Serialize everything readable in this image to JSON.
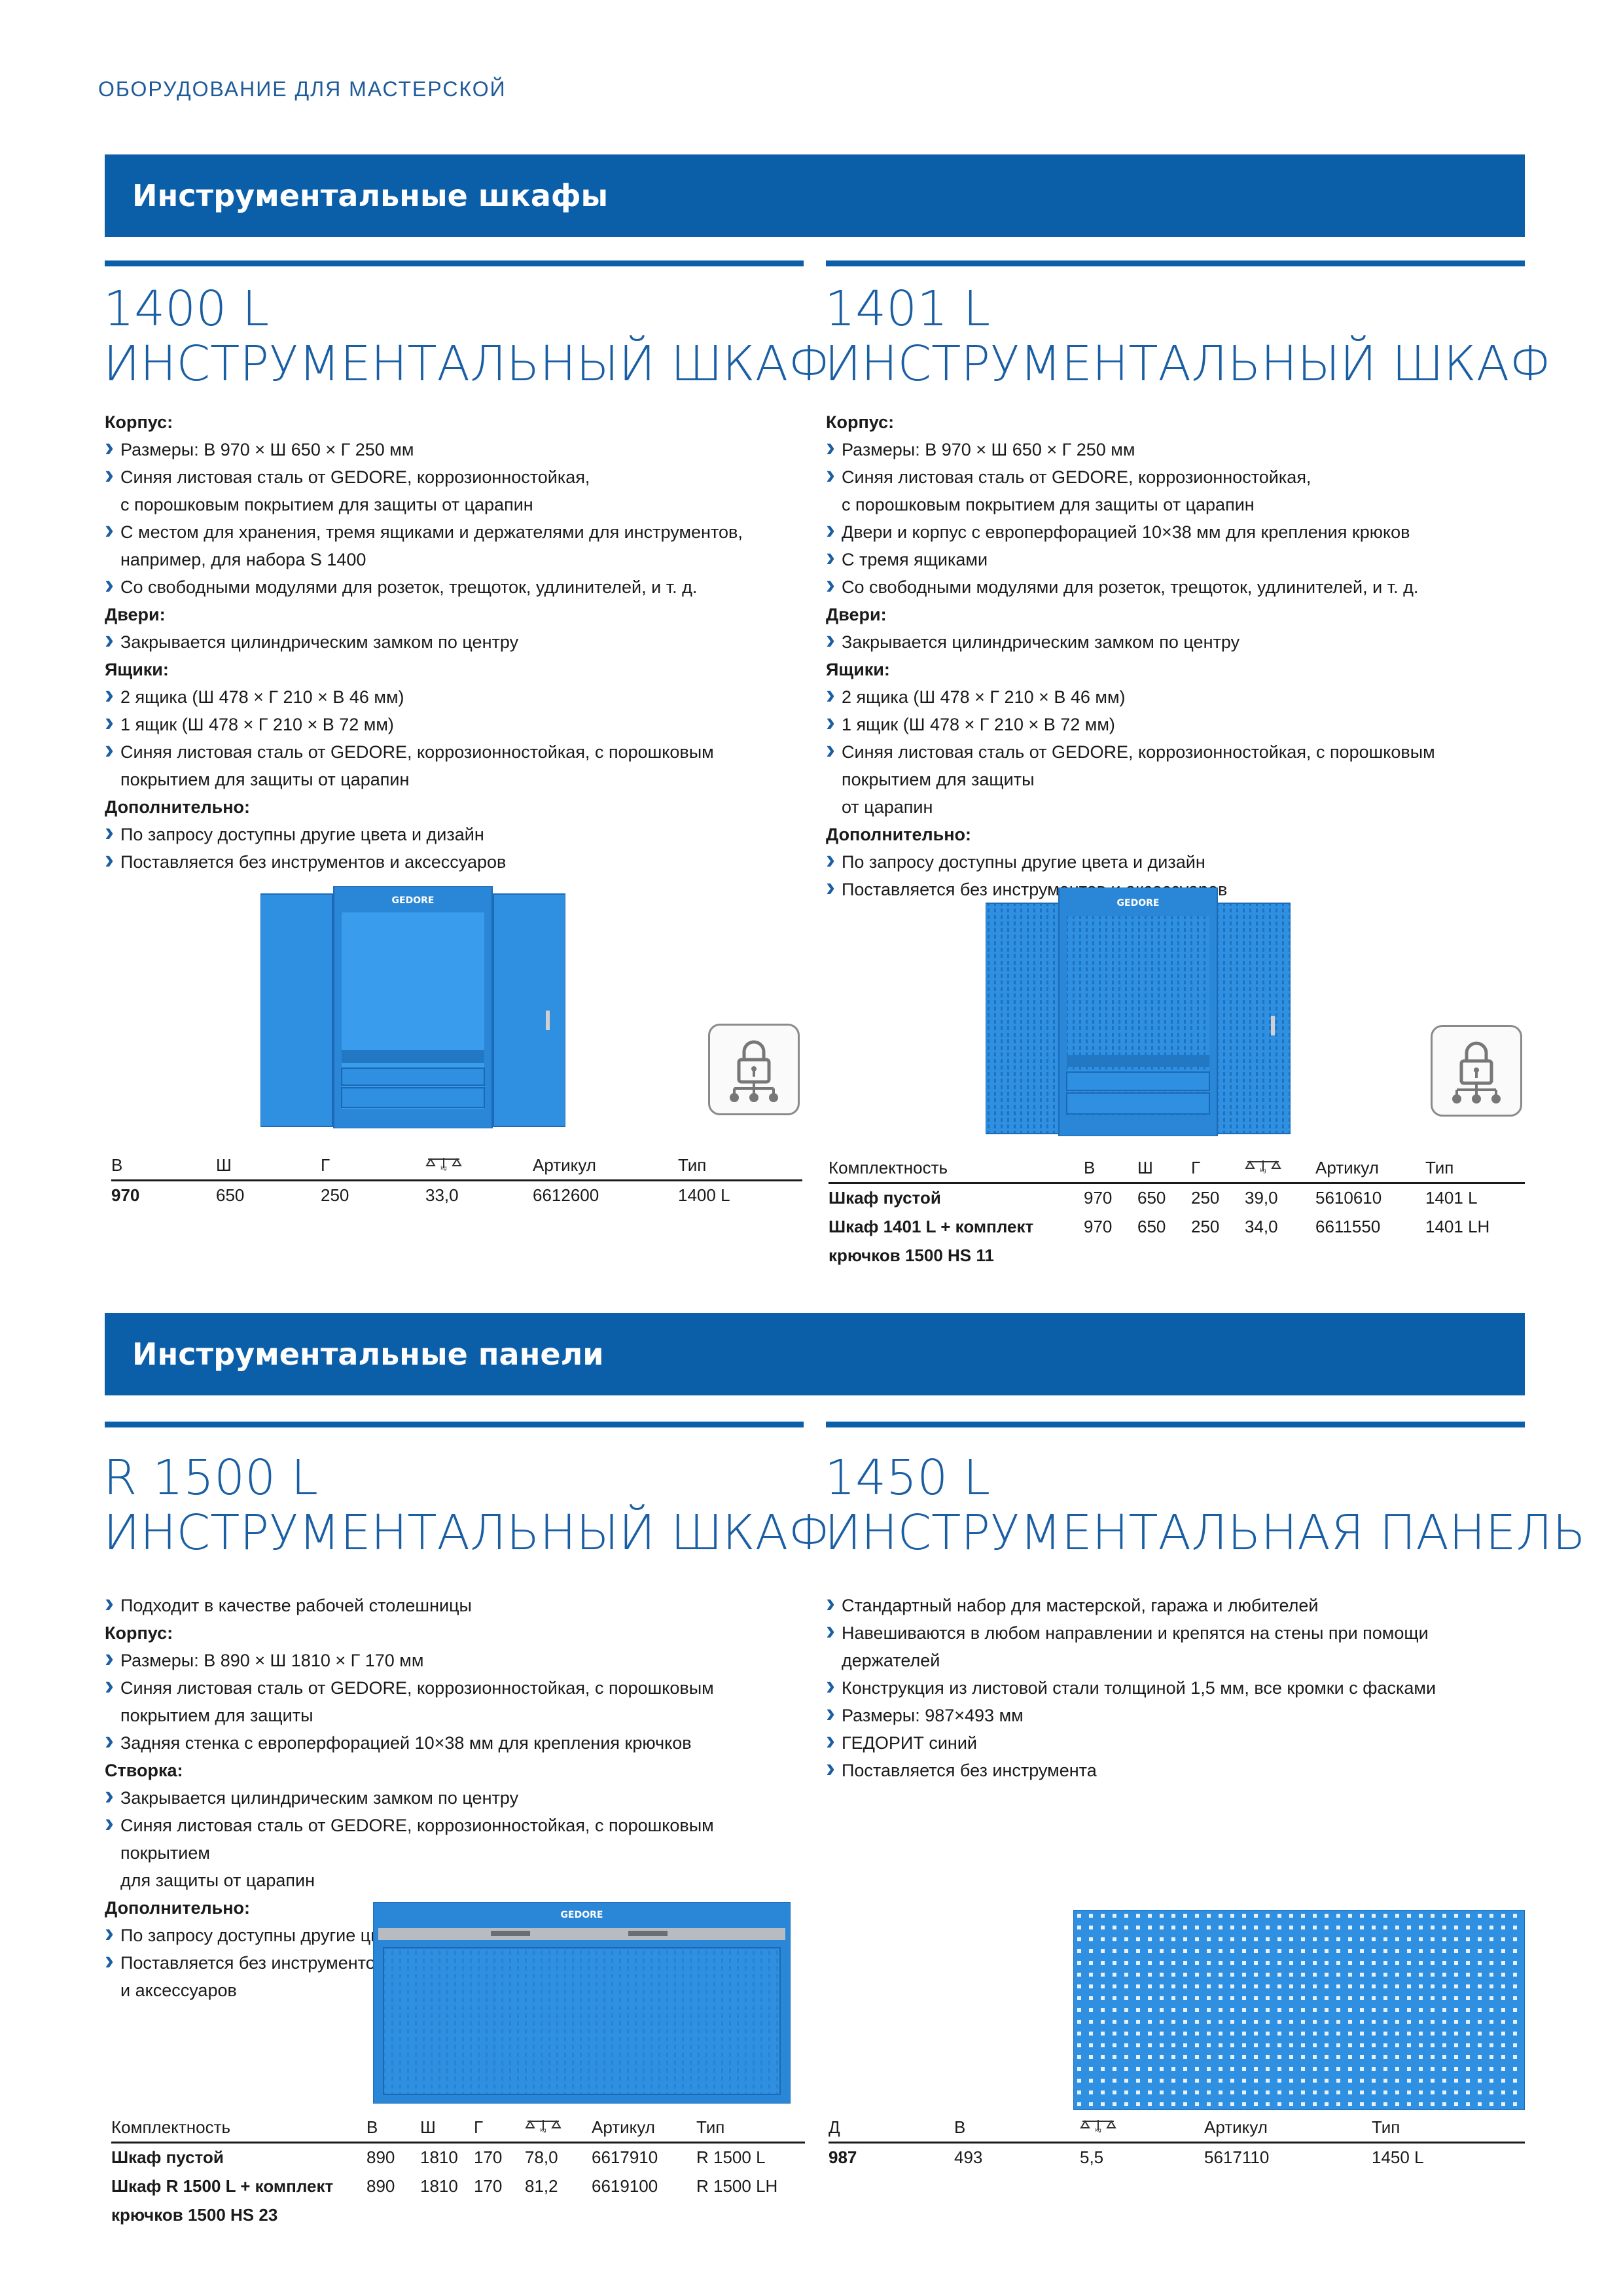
{
  "running_header": "ОБОРУДОВАНИЕ ДЛЯ МАСТЕРСКОЙ",
  "sections": {
    "cabinets": "Инструментальные шкафы",
    "panels": "Инструментальные панели"
  },
  "p1400": {
    "code": "1400 L",
    "name": "ИНСТРУМЕНТАЛЬНЫЙ ШКАФ",
    "h_body": "Корпус:",
    "b1": "Размеры: В 970 × Ш 650 × Г 250 мм",
    "b2a": "Синяя листовая сталь от GEDORE, коррозионностойкая,",
    "b2b": "с порошковым покрытием для защиты от царапин",
    "b3a": "С местом для хранения, тремя ящиками и держателями для инструментов,",
    "b3b": "например, для набора S 1400",
    "b4": "Со свободными модулями для розеток, трещоток, удлинителей, и т. д.",
    "h_doors": "Двери:",
    "d1": "Закрывается цилиндрическим замком по центру",
    "h_drawers": "Ящики:",
    "w1": "2 ящика (Ш 478 × Г 210 × В 46 мм)",
    "w2": "1 ящик (Ш 478 × Г 210 × В 72 мм)",
    "w3a": "Синяя листовая сталь от GEDORE, коррозионностойкая, с порошковым",
    "w3b": "покрытием для защиты от царапин",
    "h_extra": "Дополнительно:",
    "e1": "По запросу доступны другие цвета и дизайн",
    "e2": "Поставляется без инструментов и аксессуаров",
    "logo": "GEDORE",
    "table": {
      "headers": [
        "В",
        "Ш",
        "Г",
        "",
        "Артикул",
        "Тип"
      ],
      "rows": [
        [
          "970",
          "650",
          "250",
          "33,0",
          "6612600",
          "1400 L"
        ]
      ]
    }
  },
  "p1401": {
    "code": "1401 L",
    "name": "ИНСТРУМЕНТАЛЬНЫЙ ШКАФ",
    "h_body": "Корпус:",
    "b1": "Размеры: В 970 × Ш 650 × Г 250 мм",
    "b2a": "Синяя листовая сталь от GEDORE, коррозионностойкая,",
    "b2b": "с порошковым покрытием для защиты от царапин",
    "b3": "Двери и корпус с европерфорацией 10×38 мм для крепления крюков",
    "b4": "С тремя ящиками",
    "b5": "Со свободными модулями для розеток, трещоток, удлинителей, и т. д.",
    "h_doors": "Двери:",
    "d1": "Закрывается цилиндрическим замком по центру",
    "h_drawers": "Ящики:",
    "w1": "2 ящика (Ш 478 × Г 210 × В 46 мм)",
    "w2": "1 ящик (Ш 478 × Г 210 × В 72 мм)",
    "w3a": "Синяя листовая сталь от GEDORE, коррозионностойкая, с порошковым покрытием для защиты",
    "w3b": "от царапин",
    "h_extra": "Дополнительно:",
    "e1": "По запросу доступны другие цвета и дизайн",
    "e2": "Поставляется без инструментов и аксессуаров",
    "logo": "GEDORE",
    "table": {
      "headers": [
        "Комплектность",
        "В",
        "Ш",
        "Г",
        "",
        "Артикул",
        "Тип"
      ],
      "rows": [
        [
          "Шкаф пустой",
          "970",
          "650",
          "250",
          "39,0",
          "5610610",
          "1401 L"
        ],
        [
          "Шкаф 1401 L + комплект",
          "970",
          "650",
          "250",
          "34,0",
          "6611550",
          "1401 LH"
        ],
        [
          "крючков 1500 HS 11",
          "",
          "",
          "",
          "",
          "",
          ""
        ]
      ]
    }
  },
  "pR1500": {
    "code": "R 1500 L",
    "name": "ИНСТРУМЕНТАЛЬНЫЙ ШКАФ",
    "a1": "Подходит в качестве рабочей столешницы",
    "h_body": "Корпус:",
    "b1": "Размеры: В 890 × Ш 1810 × Г 170 мм",
    "b2": "Синяя листовая сталь от GEDORE, коррозионностойкая, с порошковым покрытием для защиты",
    "b3": "Задняя стенка с европерфорацией 10×38 мм для крепления крючков",
    "h_flap": "Створка:",
    "f1": "Закрывается цилиндрическим замком по центру",
    "f2a": "Синяя листовая сталь от GEDORE, коррозионностойкая, с порошковым покрытием",
    "f2b": "для защиты от царапин",
    "h_extra": "Дополнительно:",
    "e1": "По запросу доступны другие цвета и дизайн",
    "e2a": "Поставляется без инструментов",
    "e2b": "и аксессуаров",
    "logo": "GEDORE",
    "table": {
      "headers": [
        "Комплектность",
        "В",
        "Ш",
        "Г",
        "",
        "Артикул",
        "Тип"
      ],
      "rows": [
        [
          "Шкаф пустой",
          "890",
          "1810",
          "170",
          "78,0",
          "6617910",
          "R 1500 L"
        ],
        [
          "Шкаф R 1500 L + комплект",
          "890",
          "1810",
          "170",
          "81,2",
          "6619100",
          "R 1500 LH"
        ],
        [
          "крючков 1500 HS 23",
          "",
          "",
          "",
          "",
          "",
          ""
        ]
      ]
    }
  },
  "p1450": {
    "code": "1450 L",
    "name": "ИНСТРУМЕНТАЛЬНАЯ ПАНЕЛЬ",
    "i1": "Стандартный набор для мастерской, гаража и любителей",
    "i2": "Навешиваются в любом направлении и крепятся на стены при помощи держателей",
    "i3": "Конструкция из листовой стали толщиной 1,5 мм, все кромки с фасками",
    "i4": "Размеры: 987×493 мм",
    "i5": "ГЕДОРИТ синий",
    "i6": "Поставляется без инструмента",
    "table": {
      "headers": [
        "Д",
        "В",
        "",
        "Артикул",
        "Тип"
      ],
      "rows": [
        [
          "987",
          "493",
          "5,5",
          "5617110",
          "1450 L"
        ]
      ]
    }
  },
  "colors": {
    "brand_blue": "#0b5ea8",
    "product_blue": "#2a8ee0",
    "title_blue": "#1a5ea4"
  }
}
